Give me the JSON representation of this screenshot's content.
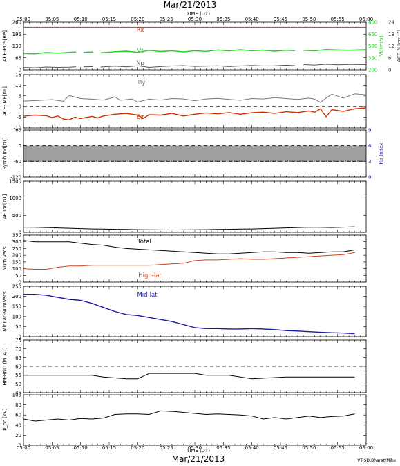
{
  "header": {
    "date_title": "Mar/21/2013",
    "time_axis_label": "TIME (UT)"
  },
  "footer": {
    "date_title": "Mar/21/2013",
    "time_axis_label": "TIME (UT)",
    "credit": "VT-SD:Bharat/Mike"
  },
  "time_ticks": [
    "05:00",
    "05:05",
    "05:10",
    "05:15",
    "05:20",
    "05:25",
    "05:30",
    "05:35",
    "05:40",
    "05:45",
    "05:50",
    "05:55",
    "06:00"
  ],
  "colors": {
    "rx": "#cc3300",
    "vt": "#22cc22",
    "np": "#555555",
    "by": "#777777",
    "bz": "#cc3300",
    "total": "#000000",
    "highlat": "#cc4422",
    "midlat": "#1a1aa0",
    "kp": "#1a1aa0",
    "band": "#a0a0a0",
    "line": "#000000"
  },
  "chart_data": [
    {
      "type": "line",
      "panel": "ace-pos",
      "ylabel": "ACE-POS[Re]",
      "ylim": [
        0,
        260
      ],
      "yticks": [
        "260",
        "195",
        "130",
        "65",
        "0"
      ],
      "right_axis": {
        "label": "Vt[km/s]",
        "ticks": [
          "800",
          "650",
          "500",
          "350",
          "200"
        ],
        "ylim": [
          200,
          800
        ],
        "color": "#22cc22"
      },
      "right_axis2": {
        "label": "ACE-N",
        "unit": "[cm⁻³]",
        "ticks": [
          "24",
          "18",
          "12",
          "6",
          "0"
        ],
        "ylim": [
          0,
          24
        ],
        "color": "#555555"
      },
      "series": [
        {
          "name": "Rx",
          "color_key": "rx",
          "label_x": 5.5,
          "x": [
            0,
            60
          ],
          "y": [
            232,
            232
          ]
        },
        {
          "name": "Vt",
          "color_key": "vt",
          "label_x": 28,
          "axis": "right",
          "x": [
            0,
            2,
            4,
            6,
            8,
            9.2
          ],
          "y": [
            405,
            402,
            418,
            410,
            420,
            425
          ],
          "segments": [
            {
              "x": [
                0,
                2,
                4,
                6,
                8,
                9.2
              ],
              "y": [
                405,
                402,
                418,
                410,
                420,
                425
              ]
            },
            {
              "x": [
                10.5,
                12.2
              ],
              "y": [
                420,
                425
              ]
            },
            {
              "x": [
                13.5,
                16,
                18,
                20,
                22,
                24,
                26,
                28,
                30,
                32,
                34,
                36,
                38,
                40,
                42,
                44,
                46,
                47.5
              ],
              "y": [
                415,
                428,
                435,
                420,
                445,
                430,
                440,
                425,
                440,
                432,
                450,
                438,
                452,
                440,
                448,
                435,
                446,
                440
              ]
            },
            {
              "x": [
                49,
                51,
                53,
                55,
                57,
                60
              ],
              "y": [
                445,
                440,
                455,
                450,
                446,
                452
              ]
            }
          ]
        },
        {
          "name": "Np",
          "color_key": "np",
          "label_x": 28,
          "axis": "right2",
          "segments": [
            {
              "x": [
                0,
                2,
                4,
                6,
                8,
                9.2
              ],
              "y": [
                1.2,
                1.0,
                1.4,
                1.2,
                1.3,
                1.5
              ]
            },
            {
              "x": [
                10.5,
                12.2
              ],
              "y": [
                1.5,
                1.6
              ]
            },
            {
              "x": [
                13.5,
                16,
                18,
                20,
                22,
                24,
                26,
                28,
                30,
                32,
                34,
                36,
                38,
                40,
                42,
                44,
                46,
                47.5
              ],
              "y": [
                1.4,
                1.8,
                1.5,
                2.0,
                1.2,
                1.6,
                1.9,
                2.1,
                1.7,
                1.8,
                2.0,
                1.6,
                1.9,
                2.2,
                1.9,
                2.0,
                2.3,
                2.1
              ]
            },
            {
              "x": [
                49,
                51,
                53,
                55,
                57,
                60
              ],
              "y": [
                2.6,
                2.4,
                2.8,
                2.5,
                2.7,
                2.6
              ]
            }
          ]
        }
      ]
    },
    {
      "type": "line",
      "panel": "ace-imf",
      "ylabel": "ACE-IMF[nT]",
      "ylim": [
        -10,
        15
      ],
      "yticks": [
        "15",
        "10",
        "5",
        "0",
        "-5",
        "-10"
      ],
      "zero_line": 0,
      "series": [
        {
          "name": "By",
          "color_key": "by",
          "label_x": 28,
          "x": [
            0,
            3,
            5,
            7,
            8,
            10,
            12,
            14,
            16,
            17,
            19,
            20,
            22,
            24,
            26,
            28,
            30,
            32,
            34,
            36,
            38,
            40,
            42,
            44,
            46,
            48,
            50,
            51,
            52,
            53,
            54,
            56,
            58,
            60
          ],
          "y": [
            2.6,
            3.0,
            3.3,
            2.5,
            5.2,
            3.8,
            3.5,
            3.1,
            4.5,
            3.0,
            3.6,
            2.2,
            3.5,
            3.1,
            3.8,
            3.6,
            2.8,
            3.6,
            3.9,
            3.4,
            3.0,
            3.8,
            3.6,
            4.2,
            3.8,
            3.4,
            4.0,
            3.5,
            2.0,
            4.0,
            5.8,
            4.0,
            6.0,
            5.5
          ]
        },
        {
          "name": "Bz",
          "color_key": "bz",
          "label_x": 28,
          "x": [
            0,
            2,
            4,
            5,
            6,
            7,
            8,
            9,
            10,
            12,
            13,
            14,
            16,
            18,
            20,
            21,
            22,
            24,
            26,
            28,
            30,
            32,
            34,
            36,
            38,
            40,
            42,
            44,
            46,
            48,
            50,
            51,
            52,
            53,
            54,
            56,
            58,
            60
          ],
          "y": [
            -4.5,
            -4.0,
            -4.3,
            -5.2,
            -4.4,
            -5.8,
            -6.2,
            -5.0,
            -5.6,
            -4.6,
            -5.3,
            -4.4,
            -3.6,
            -3.2,
            -4.0,
            -5.5,
            -3.8,
            -4.0,
            -3.2,
            -4.4,
            -3.6,
            -3.0,
            -3.4,
            -2.8,
            -3.6,
            -2.9,
            -2.6,
            -3.2,
            -2.4,
            -2.8,
            -2.0,
            -2.6,
            -1.0,
            -4.8,
            -1.4,
            -2.2,
            -1.0,
            -0.6
          ]
        }
      ]
    },
    {
      "type": "area",
      "panel": "symh",
      "ylabel": "Symh Ind[nT]",
      "ylim": [
        -120,
        60
      ],
      "yticks": [
        "60",
        "0",
        "-60",
        "-120"
      ],
      "right_axis": {
        "label": "Kp-Index",
        "ticks": [
          "9",
          "6",
          "3",
          "0"
        ],
        "ylim": [
          0,
          9
        ],
        "color": "#1a1aa0"
      },
      "band": {
        "ymin": -60,
        "ymax": 0
      },
      "dashed_lines": [
        0,
        -60
      ],
      "kp_dotted": 3,
      "symh": {
        "x": [
          0,
          10,
          20,
          30,
          40,
          50,
          60
        ],
        "y": [
          -20,
          -21,
          -20,
          -19,
          -20,
          -21,
          -20
        ]
      }
    },
    {
      "type": "line",
      "panel": "ae",
      "ylabel": "AE Ind[nT]",
      "ylim": [
        0,
        1500
      ],
      "yticks": [
        "1500",
        "1000",
        "500",
        "0"
      ],
      "series": [
        {
          "name": "AE",
          "color_key": "line",
          "x": [
            0,
            2,
            4,
            6,
            8,
            10,
            12,
            14,
            16,
            18,
            20,
            22,
            24,
            26,
            28,
            30,
            32,
            34,
            36,
            38,
            40,
            42,
            44,
            46,
            48,
            50,
            52,
            54,
            56,
            58
          ],
          "y": [
            150,
            145,
            140,
            130,
            120,
            110,
            100,
            95,
            90,
            85,
            80,
            75,
            72,
            70,
            72,
            75,
            80,
            85,
            90,
            95,
            100,
            110,
            120,
            130,
            140,
            150,
            145,
            140,
            150,
            160
          ]
        }
      ]
    },
    {
      "type": "line",
      "panel": "num-vecs",
      "ylabel": "Num.Vecs",
      "ylim": [
        0,
        350
      ],
      "yticks": [
        "350",
        "300",
        "250",
        "200",
        "150",
        "100",
        "50",
        "0"
      ],
      "series": [
        {
          "name": "Total",
          "color_key": "total",
          "label_x": 28,
          "x": [
            0,
            2,
            4,
            6,
            8,
            10,
            12,
            14,
            16,
            18,
            20,
            22,
            24,
            26,
            28,
            30,
            32,
            34,
            36,
            38,
            40,
            42,
            44,
            46,
            48,
            50,
            52,
            54,
            56,
            58
          ],
          "y": [
            310,
            300,
            300,
            300,
            300,
            290,
            280,
            275,
            260,
            250,
            245,
            240,
            235,
            230,
            225,
            220,
            215,
            210,
            210,
            215,
            220,
            225,
            225,
            220,
            220,
            215,
            220,
            225,
            225,
            240
          ]
        },
        {
          "name": "High-lat",
          "color_key": "highlat",
          "label_x": 28,
          "x": [
            0,
            2,
            4,
            6,
            8,
            10,
            12,
            14,
            16,
            18,
            20,
            22,
            24,
            26,
            28,
            30,
            32,
            34,
            36,
            38,
            40,
            42,
            44,
            46,
            48,
            50,
            52,
            54,
            56,
            58
          ],
          "y": [
            100,
            95,
            95,
            110,
            120,
            120,
            125,
            125,
            125,
            125,
            125,
            125,
            130,
            135,
            140,
            160,
            165,
            165,
            170,
            175,
            170,
            170,
            175,
            180,
            185,
            190,
            195,
            200,
            205,
            220
          ]
        }
      ]
    },
    {
      "type": "line",
      "panel": "midlat",
      "ylabel": "MidLat-NumVecs",
      "ylim": [
        0,
        250
      ],
      "yticks": [
        "250",
        "200",
        "150",
        "100",
        "50",
        "0"
      ],
      "series": [
        {
          "name": "Mid-lat",
          "color_key": "midlat",
          "label_x": 28,
          "x": [
            0,
            2,
            4,
            6,
            8,
            10,
            12,
            14,
            16,
            18,
            20,
            22,
            24,
            26,
            28,
            30,
            32,
            34,
            36,
            38,
            40,
            42,
            44,
            46,
            48,
            50,
            52,
            54,
            56,
            58
          ],
          "y": [
            210,
            210,
            205,
            195,
            185,
            180,
            165,
            145,
            125,
            110,
            105,
            95,
            85,
            75,
            60,
            45,
            40,
            40,
            38,
            38,
            40,
            38,
            35,
            30,
            28,
            25,
            22,
            20,
            18,
            15
          ]
        }
      ]
    },
    {
      "type": "line",
      "panel": "hm-bnd",
      "ylabel": "HM-BND (MLAT)",
      "ylim": [
        45,
        75
      ],
      "yticks": [
        "75",
        "70",
        "65",
        "60",
        "55",
        "50",
        "45"
      ],
      "dashed_lines": [
        60
      ],
      "series": [
        {
          "name": "HM-BND",
          "color_key": "line",
          "x": [
            0,
            12,
            14,
            18,
            20,
            22,
            30,
            32,
            36,
            40,
            46,
            50,
            58
          ],
          "y": [
            55,
            55,
            54,
            53,
            53,
            56,
            56,
            55,
            55,
            53,
            54,
            54,
            54
          ]
        }
      ]
    },
    {
      "type": "line",
      "panel": "phi-pc",
      "ylabel": "Φ_pc [kV]",
      "ylim": [
        0,
        100
      ],
      "yticks": [
        "100",
        "80",
        "60",
        "40",
        "20",
        "0"
      ],
      "series": [
        {
          "name": "Phi_pc",
          "color_key": "line",
          "x": [
            0,
            2,
            4,
            6,
            8,
            10,
            12,
            14,
            16,
            18,
            20,
            22,
            24,
            26,
            28,
            30,
            32,
            34,
            36,
            38,
            40,
            42,
            44,
            46,
            48,
            50,
            52,
            54,
            56,
            58
          ],
          "y": [
            52,
            48,
            50,
            52,
            50,
            53,
            52,
            54,
            61,
            62,
            62,
            61,
            68,
            67,
            65,
            63,
            61,
            62,
            61,
            60,
            58,
            52,
            55,
            52,
            55,
            58,
            55,
            57,
            58,
            62
          ]
        }
      ]
    }
  ]
}
